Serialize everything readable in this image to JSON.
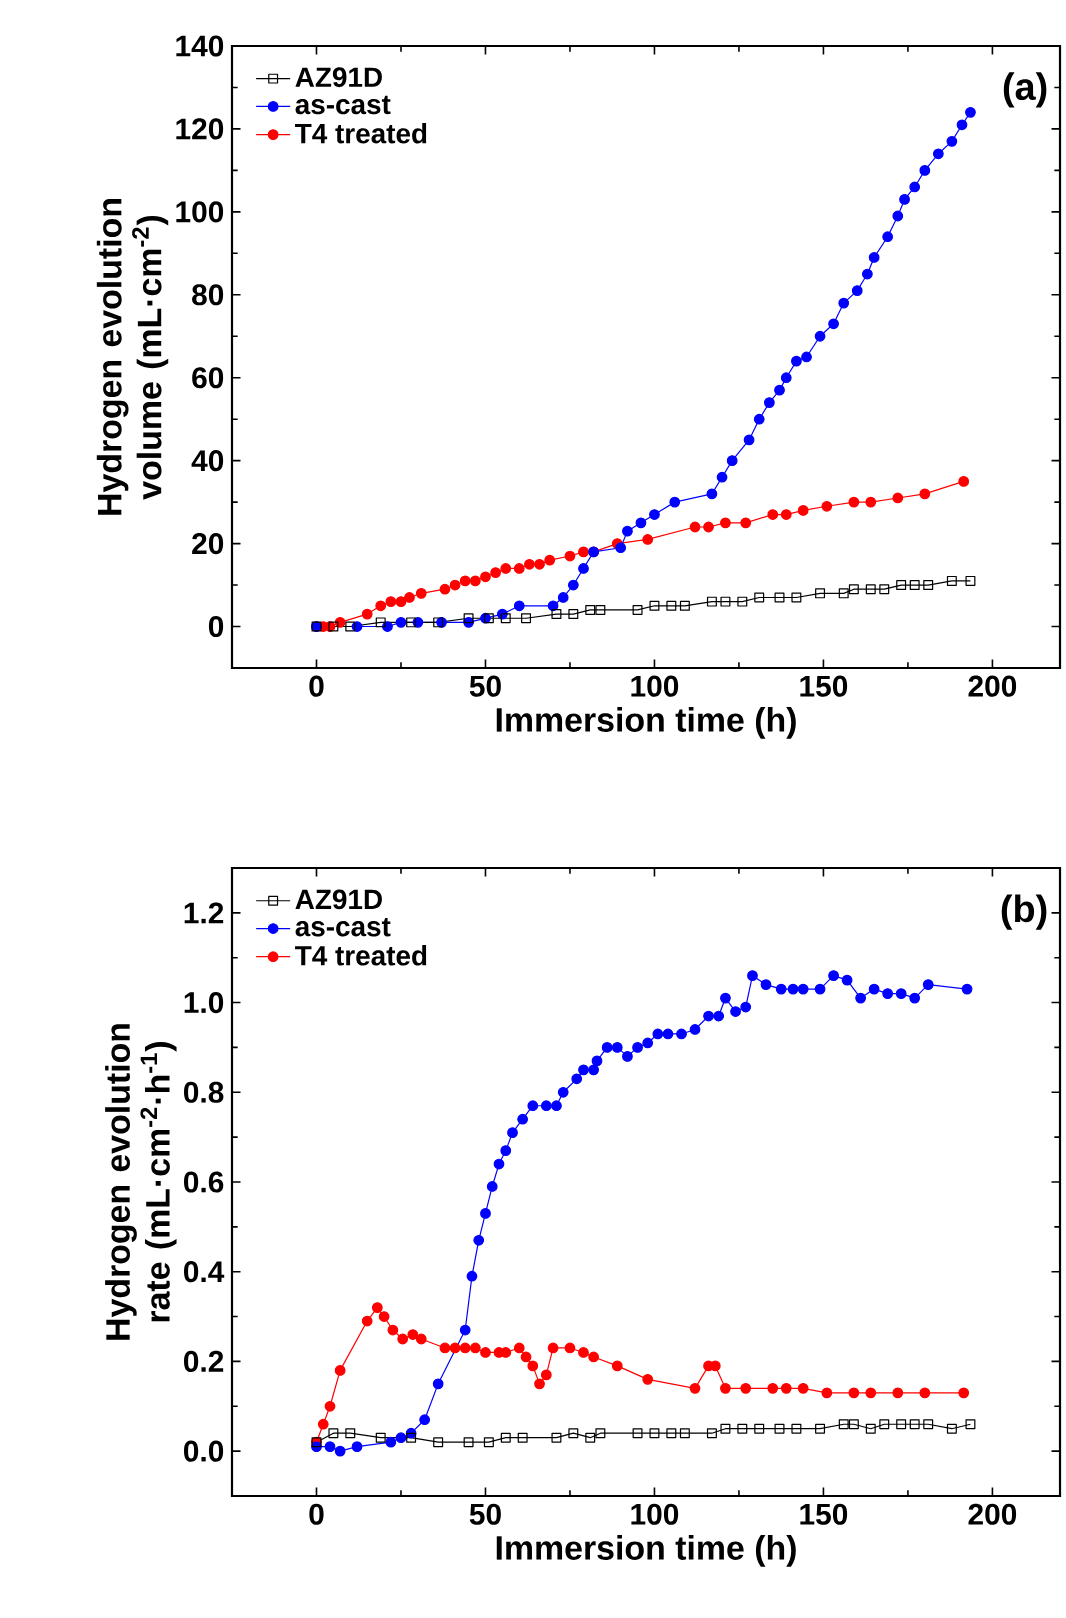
{
  "chart_data": [
    {
      "type": "line",
      "xlabel": "Immersion time (h)",
      "ylabel": "Hydrogen evolution volume (mL·cm$^{-2}$)",
      "annotations": [
        "(a)"
      ],
      "xlim": [
        -25,
        220
      ],
      "ylim": [
        -10,
        140
      ],
      "xticks": [
        0,
        50,
        100,
        150,
        200
      ],
      "yticks": [
        0,
        20,
        40,
        60,
        80,
        100,
        120,
        140
      ],
      "legend": "top left",
      "grid": false,
      "line_style": "solid",
      "series": [
        {
          "name": "AZ91D",
          "color": "#000000",
          "marker": "square",
          "x": [
            0,
            5,
            10,
            19,
            28,
            36,
            45,
            51,
            56,
            62,
            71,
            76,
            81,
            84,
            95,
            100,
            105,
            109,
            117,
            121,
            126,
            131,
            137,
            142,
            149,
            156,
            159,
            164,
            168,
            173,
            177,
            181,
            188,
            193.5
          ],
          "values": [
            0,
            0,
            0,
            1,
            1,
            1,
            2,
            2,
            2,
            2,
            3,
            3,
            4,
            4,
            4,
            5,
            5,
            5,
            6,
            6,
            6,
            7,
            7,
            7,
            8,
            8,
            9,
            9,
            9,
            10,
            10,
            10,
            11,
            11
          ]
        },
        {
          "name": "as-cast",
          "color": "#0000ff",
          "marker": "circle",
          "x": [
            0,
            12,
            21,
            25,
            30,
            37,
            45,
            50,
            55,
            60,
            70,
            73,
            76,
            79,
            82,
            90,
            92,
            96,
            100,
            106,
            117,
            120,
            123,
            128,
            131,
            134,
            137,
            139,
            142,
            145,
            149,
            153,
            156,
            160,
            163,
            165,
            169,
            172,
            174,
            177,
            180,
            184,
            188,
            191,
            193.5
          ],
          "values": [
            0,
            0,
            0,
            1,
            1,
            1,
            1,
            2,
            3,
            5,
            5,
            7,
            10,
            14,
            18,
            19,
            23,
            25,
            27,
            30,
            32,
            36,
            40,
            45,
            50,
            54,
            57,
            60,
            64,
            65,
            70,
            73,
            78,
            81,
            85,
            89,
            94,
            99,
            103,
            106,
            110,
            114,
            117,
            121,
            124
          ]
        },
        {
          "name": "T4 treated",
          "color": "#ff0000",
          "marker": "circle",
          "x": [
            0,
            2,
            4,
            7,
            15,
            19,
            22,
            25,
            27.5,
            31,
            38,
            41,
            44,
            47,
            50,
            53,
            56,
            60,
            63,
            66,
            69,
            75,
            79,
            82,
            89,
            98,
            112,
            116,
            121,
            127,
            135,
            139,
            144,
            151,
            159,
            164,
            172,
            180,
            191.5
          ],
          "values": [
            0,
            0,
            0,
            1,
            3,
            5,
            6,
            6,
            7,
            8,
            9,
            10,
            11,
            11,
            12,
            13,
            14,
            14,
            15,
            15,
            16,
            17,
            18,
            18,
            20,
            21,
            24,
            24,
            25,
            25,
            27,
            27,
            28,
            29,
            30,
            30,
            31,
            32,
            35
          ]
        }
      ]
    },
    {
      "type": "line",
      "xlabel": "Immersion time (h)",
      "ylabel": "Hydrogen evolution rate (mL·cm$^{-2}$·h$^{-1}$)",
      "annotations": [
        "(b)"
      ],
      "xlim": [
        -25,
        220
      ],
      "ylim": [
        -0.1,
        1.3
      ],
      "xticks": [
        0,
        50,
        100,
        150,
        200
      ],
      "yticks": [
        {
          "value": 0,
          "label": "0.0"
        },
        {
          "value": 0.2,
          "label": "0.2"
        },
        {
          "value": 0.4,
          "label": "0.4"
        },
        {
          "value": 0.6,
          "label": "0.6"
        },
        {
          "value": 0.8,
          "label": "0.8"
        },
        {
          "value": 1.0,
          "label": "1.0"
        },
        {
          "value": 1.2,
          "label": "1.2"
        }
      ],
      "legend": "top left",
      "grid": false,
      "line_style": "solid",
      "series": [
        {
          "name": "AZ91D",
          "color": "#000000",
          "marker": "square",
          "x": [
            0,
            5,
            10,
            19,
            28,
            36,
            45,
            51,
            56,
            61,
            71,
            76,
            81,
            84,
            95,
            100,
            105,
            109,
            117,
            121,
            126,
            131,
            137,
            142,
            149,
            156,
            159,
            164,
            168,
            173,
            177,
            181,
            188,
            193.5
          ],
          "values": [
            0.02,
            0.04,
            0.04,
            0.03,
            0.03,
            0.02,
            0.02,
            0.02,
            0.03,
            0.03,
            0.03,
            0.04,
            0.03,
            0.04,
            0.04,
            0.04,
            0.04,
            0.04,
            0.04,
            0.05,
            0.05,
            0.05,
            0.05,
            0.05,
            0.05,
            0.06,
            0.06,
            0.05,
            0.06,
            0.06,
            0.06,
            0.06,
            0.05,
            0.06
          ]
        },
        {
          "name": "as-cast",
          "color": "#0000ff",
          "marker": "circle",
          "x": [
            0,
            4,
            7,
            12,
            22,
            25,
            28,
            32,
            36,
            44,
            46,
            48,
            50,
            52,
            54,
            56,
            58,
            61,
            64,
            68,
            71,
            73,
            77,
            79,
            82,
            83,
            86,
            89,
            92,
            95,
            98,
            101,
            104,
            108,
            112,
            116,
            119,
            121,
            124,
            127,
            129,
            133,
            137.5,
            141,
            144,
            149,
            153,
            157,
            161,
            165,
            169,
            173,
            177,
            181,
            192.5
          ],
          "values": [
            0.01,
            0.01,
            0,
            0.01,
            0.02,
            0.03,
            0.04,
            0.07,
            0.15,
            0.27,
            0.39,
            0.47,
            0.53,
            0.59,
            0.64,
            0.67,
            0.71,
            0.74,
            0.77,
            0.77,
            0.77,
            0.8,
            0.83,
            0.85,
            0.85,
            0.87,
            0.9,
            0.9,
            0.88,
            0.9,
            0.91,
            0.93,
            0.93,
            0.93,
            0.94,
            0.97,
            0.97,
            1.01,
            0.98,
            0.99,
            1.06,
            1.04,
            1.03,
            1.03,
            1.03,
            1.03,
            1.06,
            1.05,
            1.01,
            1.03,
            1.02,
            1.02,
            1.01,
            1.04,
            1.03
          ]
        },
        {
          "name": "T4 treated",
          "color": "#ff0000",
          "marker": "circle",
          "x": [
            0,
            2,
            4,
            7,
            15,
            18,
            20,
            22.6,
            25.5,
            28.5,
            31,
            38,
            41,
            44,
            47,
            50,
            54,
            56,
            60,
            62,
            64,
            66,
            68,
            70,
            75,
            79,
            82,
            89,
            98,
            112,
            116,
            118,
            121,
            127,
            135,
            139,
            144,
            151,
            159,
            164,
            172,
            180,
            191.5
          ],
          "values": [
            0.02,
            0.06,
            0.1,
            0.18,
            0.29,
            0.32,
            0.3,
            0.27,
            0.25,
            0.26,
            0.25,
            0.23,
            0.23,
            0.23,
            0.23,
            0.22,
            0.22,
            0.22,
            0.23,
            0.21,
            0.19,
            0.15,
            0.17,
            0.23,
            0.23,
            0.22,
            0.21,
            0.19,
            0.16,
            0.14,
            0.19,
            0.19,
            0.14,
            0.14,
            0.14,
            0.14,
            0.14,
            0.13,
            0.13,
            0.13,
            0.13,
            0.13,
            0.13
          ]
        }
      ]
    }
  ]
}
